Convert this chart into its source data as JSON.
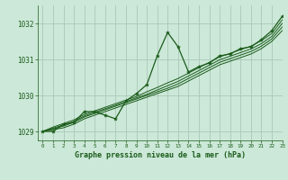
{
  "title": "Graphe pression niveau de la mer (hPa)",
  "background_color": "#cce8d8",
  "grid_color": "#aac8b8",
  "line_color": "#1a5c1a",
  "marker_color": "#1a5c1a",
  "xlim": [
    -0.5,
    23
  ],
  "ylim": [
    1028.75,
    1032.5
  ],
  "yticks": [
    1029,
    1030,
    1031,
    1032
  ],
  "xticks": [
    0,
    1,
    2,
    3,
    4,
    5,
    6,
    7,
    8,
    9,
    10,
    11,
    12,
    13,
    14,
    15,
    16,
    17,
    18,
    19,
    20,
    21,
    22,
    23
  ],
  "smooth_lines": [
    [
      1029.0,
      1029.05,
      1029.1,
      1029.2,
      1029.35,
      1029.45,
      1029.55,
      1029.65,
      1029.75,
      1029.85,
      1029.95,
      1030.05,
      1030.15,
      1030.25,
      1030.4,
      1030.55,
      1030.7,
      1030.85,
      1030.95,
      1031.05,
      1031.15,
      1031.3,
      1031.5,
      1031.8
    ],
    [
      1029.0,
      1029.07,
      1029.15,
      1029.25,
      1029.4,
      1029.5,
      1029.6,
      1029.7,
      1029.8,
      1029.9,
      1030.0,
      1030.1,
      1030.2,
      1030.32,
      1030.47,
      1030.62,
      1030.77,
      1030.92,
      1031.02,
      1031.12,
      1031.22,
      1031.37,
      1031.57,
      1031.9
    ],
    [
      1029.0,
      1029.09,
      1029.18,
      1029.28,
      1029.43,
      1029.53,
      1029.63,
      1029.73,
      1029.83,
      1029.93,
      1030.03,
      1030.15,
      1030.27,
      1030.39,
      1030.54,
      1030.69,
      1030.84,
      1030.99,
      1031.09,
      1031.19,
      1031.29,
      1031.44,
      1031.64,
      1032.0
    ],
    [
      1029.0,
      1029.12,
      1029.22,
      1029.32,
      1029.47,
      1029.57,
      1029.67,
      1029.77,
      1029.87,
      1029.97,
      1030.1,
      1030.22,
      1030.35,
      1030.47,
      1030.62,
      1030.77,
      1030.92,
      1031.07,
      1031.17,
      1031.27,
      1031.37,
      1031.52,
      1031.72,
      1032.1
    ]
  ],
  "main_series_x": [
    0,
    1,
    2,
    3,
    4,
    5,
    6,
    7,
    8,
    9,
    10,
    11,
    12,
    13,
    14,
    15,
    16,
    17,
    18,
    19,
    20,
    21,
    22,
    23
  ],
  "main_series_y": [
    1029.0,
    1029.0,
    1029.2,
    1029.25,
    1029.55,
    1029.55,
    1029.45,
    1029.35,
    1029.85,
    1030.05,
    1030.3,
    1031.1,
    1031.75,
    1031.35,
    1030.65,
    1030.8,
    1030.9,
    1031.1,
    1031.15,
    1031.3,
    1031.35,
    1031.55,
    1031.8,
    1032.2
  ]
}
